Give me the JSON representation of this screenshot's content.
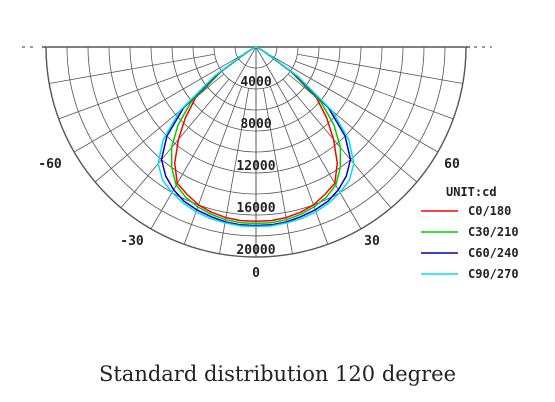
{
  "chart_data": {
    "type": "line",
    "subtype": "polar-luminous-intensity",
    "unit_label": "UNIT:cd",
    "radial_ticks": [
      4000,
      8000,
      12000,
      16000,
      20000
    ],
    "radial_tick_labels": [
      "4000",
      "8000",
      "12000",
      "16000",
      "20000"
    ],
    "rmax": 20000,
    "angle_labels": [
      "-60",
      "-30",
      "0",
      "30",
      "60"
    ],
    "angle_range": [
      -90,
      90
    ],
    "grid": true,
    "legend_position": "bottom-right",
    "series": [
      {
        "name": "C0/180",
        "color": "#ff0000",
        "angles": [
          -90,
          -80,
          -70,
          -60,
          -55,
          -50,
          -45,
          -40,
          -35,
          -30,
          -25,
          -20,
          -15,
          -10,
          -5,
          0,
          5,
          10,
          15,
          20,
          25,
          30,
          35,
          40,
          45,
          50,
          55,
          60,
          70,
          80,
          90
        ],
        "values": [
          0,
          0,
          200,
          1000,
          4000,
          7500,
          9500,
          11500,
          13500,
          15000,
          15500,
          16000,
          16300,
          16500,
          16600,
          16600,
          16600,
          16500,
          16300,
          16000,
          15500,
          15000,
          13500,
          11500,
          9500,
          7500,
          4000,
          1000,
          200,
          0,
          0
        ]
      },
      {
        "name": "C30/210",
        "color": "#00cc00",
        "angles": [
          -90,
          -80,
          -70,
          -60,
          -55,
          -50,
          -45,
          -40,
          -35,
          -30,
          -25,
          -20,
          -15,
          -10,
          -5,
          0,
          5,
          10,
          15,
          20,
          25,
          30,
          35,
          40,
          45,
          50,
          55,
          60,
          70,
          80,
          90
        ],
        "values": [
          0,
          0,
          200,
          1000,
          4200,
          8000,
          10500,
          12500,
          14000,
          15200,
          15800,
          16200,
          16500,
          16700,
          16800,
          16800,
          16800,
          16700,
          16500,
          16200,
          15800,
          15200,
          14000,
          12500,
          10500,
          8000,
          4200,
          1000,
          200,
          0,
          0
        ]
      },
      {
        "name": "C60/240",
        "color": "#0000cc",
        "angles": [
          -90,
          -80,
          -70,
          -60,
          -55,
          -50,
          -45,
          -40,
          -35,
          -30,
          -25,
          -20,
          -15,
          -10,
          -5,
          0,
          5,
          10,
          15,
          20,
          25,
          30,
          35,
          40,
          45,
          50,
          55,
          60,
          70,
          80,
          90
        ],
        "values": [
          0,
          0,
          200,
          1100,
          4500,
          9000,
          12000,
          14000,
          15000,
          15700,
          16200,
          16500,
          16700,
          16900,
          17000,
          17000,
          17000,
          16900,
          16700,
          16500,
          16200,
          15700,
          15000,
          14000,
          12000,
          9000,
          4500,
          1100,
          200,
          0,
          0
        ]
      },
      {
        "name": "C90/270",
        "color": "#00e0e0",
        "angles": [
          -90,
          -80,
          -70,
          -60,
          -55,
          -50,
          -45,
          -40,
          -35,
          -30,
          -25,
          -20,
          -15,
          -10,
          -5,
          0,
          5,
          10,
          15,
          20,
          25,
          30,
          35,
          40,
          45,
          50,
          55,
          60,
          70,
          80,
          90
        ],
        "values": [
          0,
          0,
          200,
          1200,
          4800,
          9500,
          12500,
          14500,
          15500,
          16000,
          16400,
          16700,
          16900,
          17000,
          17100,
          17100,
          17100,
          17000,
          16900,
          16700,
          16400,
          16000,
          15500,
          14500,
          12500,
          9500,
          4800,
          1200,
          200,
          0,
          0
        ]
      }
    ]
  },
  "caption": "Standard distribution 120 degree"
}
